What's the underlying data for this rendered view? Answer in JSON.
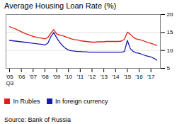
{
  "chart_data": {
    "type": "line",
    "title": "Average Housing Loan Rate (%)",
    "xlabel": "Q3",
    "source": "Source: Bank of Russia",
    "x": [
      2005.0,
      2005.25,
      2005.5,
      2005.75,
      2006.0,
      2006.25,
      2006.5,
      2006.75,
      2007.0,
      2007.25,
      2007.5,
      2007.75,
      2008.0,
      2008.25,
      2008.5,
      2008.75,
      2009.0,
      2009.25,
      2009.5,
      2009.75,
      2010.0,
      2010.25,
      2010.5,
      2010.75,
      2011.0,
      2011.25,
      2011.5,
      2011.75,
      2012.0,
      2012.25,
      2012.5,
      2012.75,
      2013.0,
      2013.25,
      2013.5,
      2013.75,
      2014.0,
      2014.25,
      2014.5,
      2014.75,
      2015.0,
      2015.25,
      2015.5,
      2015.75,
      2016.0,
      2016.25,
      2016.5,
      2016.75,
      2017.0,
      2017.25,
      2017.5
    ],
    "series": [
      {
        "name": "In Rubles",
        "color": "#dd2211",
        "values": [
          16.6,
          16.3,
          16.0,
          15.6,
          15.2,
          14.8,
          14.5,
          14.2,
          13.9,
          13.7,
          13.5,
          13.4,
          13.2,
          13.6,
          14.8,
          15.8,
          14.6,
          14.3,
          14.1,
          13.8,
          13.5,
          13.2,
          13.0,
          12.9,
          12.7,
          12.6,
          12.5,
          12.4,
          12.3,
          12.3,
          12.4,
          12.4,
          12.4,
          12.5,
          12.5,
          12.5,
          12.5,
          12.5,
          12.6,
          13.1,
          15.1,
          14.5,
          13.7,
          13.2,
          13.0,
          12.8,
          12.5,
          12.2,
          12.0,
          11.7,
          11.4
        ]
      },
      {
        "name": "In foreign currency",
        "color": "#1a1aaa",
        "values": [
          12.8,
          12.7,
          12.6,
          12.5,
          12.4,
          12.3,
          12.2,
          12.1,
          12.0,
          11.9,
          11.8,
          11.7,
          11.5,
          12.0,
          13.8,
          15.0,
          13.5,
          12.3,
          11.3,
          10.6,
          10.1,
          9.9,
          9.8,
          9.7,
          9.7,
          9.6,
          9.6,
          9.5,
          9.5,
          9.5,
          9.5,
          9.5,
          9.5,
          9.5,
          9.5,
          9.5,
          9.5,
          9.5,
          9.5,
          9.7,
          12.8,
          10.5,
          9.7,
          9.3,
          9.2,
          8.9,
          8.6,
          8.4,
          8.2,
          7.8,
          7.3
        ]
      }
    ],
    "xlim": [
      2004.7,
      2017.8
    ],
    "xticks": [
      {
        "value": 2005,
        "label": "'05"
      },
      {
        "value": 2006,
        "label": "'06"
      },
      {
        "value": 2007,
        "label": "'07"
      },
      {
        "value": 2008,
        "label": "'08"
      },
      {
        "value": 2009,
        "label": "'09"
      },
      {
        "value": 2010,
        "label": "'10"
      },
      {
        "value": 2011,
        "label": "'11"
      },
      {
        "value": 2012,
        "label": "'12"
      },
      {
        "value": 2013,
        "label": "'13"
      },
      {
        "value": 2014,
        "label": "'14"
      },
      {
        "value": 2015,
        "label": "'15"
      },
      {
        "value": 2016,
        "label": "'16"
      },
      {
        "value": 2017,
        "label": "'17"
      }
    ],
    "ylim": [
      5,
      20
    ],
    "yticks": [
      5,
      10,
      15,
      20
    ],
    "grid": true,
    "legend": "lower left"
  }
}
